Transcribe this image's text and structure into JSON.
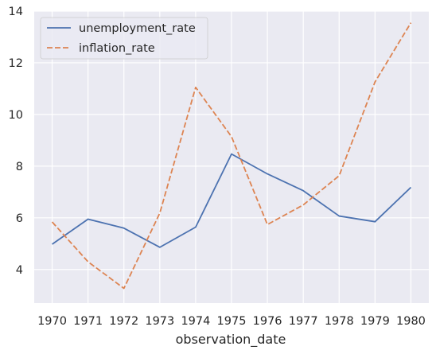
{
  "chart_data": {
    "type": "line",
    "x": [
      1970,
      1971,
      1972,
      1973,
      1974,
      1975,
      1976,
      1977,
      1978,
      1979,
      1980
    ],
    "series": [
      {
        "name": "unemployment_rate",
        "color": "#4c72b0",
        "dash": "solid",
        "values": [
          4.98,
          5.95,
          5.6,
          4.86,
          5.64,
          8.47,
          7.7,
          7.05,
          6.07,
          5.85,
          7.18
        ]
      },
      {
        "name": "inflation_rate",
        "color": "#dd8452",
        "dash": "dashed",
        "values": [
          5.84,
          4.3,
          3.27,
          6.18,
          11.05,
          9.14,
          5.74,
          6.5,
          7.63,
          11.26,
          13.55
        ]
      }
    ],
    "xlabel": "observation_date",
    "ylabel": "",
    "xticks": [
      "1970",
      "1971",
      "1972",
      "1973",
      "1974",
      "1975",
      "1976",
      "1977",
      "1978",
      "1979",
      "1980"
    ],
    "yticks": [
      "4",
      "6",
      "8",
      "10",
      "12",
      "14"
    ],
    "xlim": [
      1969.5,
      1980.5
    ],
    "ylim": [
      2.7,
      14
    ],
    "grid": true,
    "legend_position": "top-left",
    "background": "#eaeaf2",
    "grid_color": "#ffffff"
  }
}
